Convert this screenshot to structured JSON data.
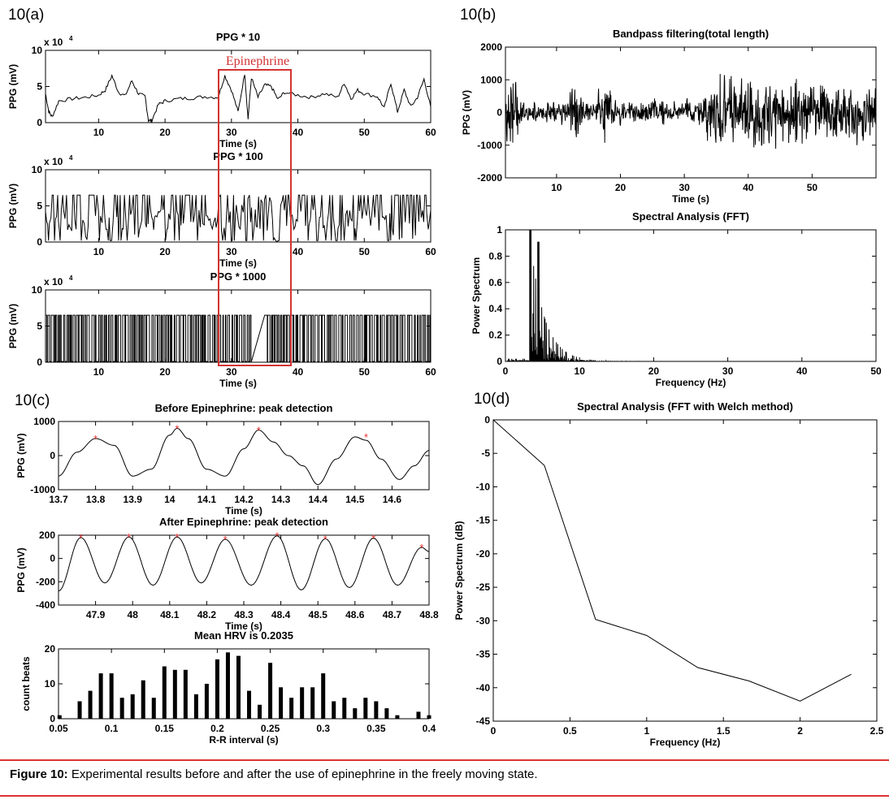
{
  "panels": {
    "a": "10(a)",
    "b": "10(b)",
    "c": "10(c)",
    "d": "10(d)"
  },
  "caption": {
    "label": "Figure 10:",
    "text": " Experimental results before and after the use of epinephrine in the freely moving state."
  },
  "annotation": {
    "text": "Epinephrine",
    "color": "#d33333"
  },
  "chart_data": [
    {
      "id": "a1",
      "type": "line",
      "title": "PPG * 10",
      "xlabel": "Time (s)",
      "ylabel": "PPG (mV)",
      "exponent": "x 10",
      "exponent_power": "4",
      "xlim": [
        2,
        60
      ],
      "ylim": [
        0,
        10
      ],
      "xticks": [
        10,
        20,
        30,
        40,
        50,
        60
      ],
      "yticks": [
        0,
        5,
        10
      ],
      "xtick_labels": [
        "10",
        "20",
        "30",
        "40",
        "50",
        "60"
      ],
      "ytick_labels": [
        "0",
        "5",
        "10"
      ],
      "series": [
        {
          "x": [
            2,
            2.5,
            3,
            4,
            6,
            8,
            10,
            11,
            12,
            13,
            14,
            15,
            16,
            17,
            17.5,
            18,
            19,
            20,
            22,
            24,
            26,
            28,
            29,
            30,
            31,
            32,
            32.5,
            33,
            34,
            35,
            36,
            37,
            38,
            40,
            42,
            44,
            46,
            47,
            48,
            49,
            50,
            52,
            53,
            54,
            55,
            56,
            57,
            58,
            59,
            60
          ],
          "y": [
            4,
            1.5,
            0.8,
            3,
            3.3,
            3.5,
            3.8,
            4.5,
            6.5,
            4.2,
            3.7,
            5.8,
            4,
            3.6,
            0.3,
            0.3,
            2.5,
            3,
            3.3,
            3.4,
            3.6,
            3.5,
            6.5,
            4.5,
            1.5,
            6.8,
            0.5,
            6.2,
            3.5,
            5.2,
            5,
            3.2,
            4.2,
            3.8,
            3.5,
            4,
            3.5,
            5.5,
            3.3,
            4.5,
            4,
            3.6,
            2,
            5.5,
            1.5,
            4.5,
            2.2,
            3.5,
            6,
            2.2
          ]
        }
      ]
    },
    {
      "id": "a2",
      "type": "line",
      "title": "PPG * 100",
      "xlabel": "Time (s)",
      "ylabel": "PPG (mV)",
      "exponent": "x 10",
      "exponent_power": "4",
      "xlim": [
        2,
        60
      ],
      "ylim": [
        0,
        10
      ],
      "xticks": [
        10,
        20,
        30,
        40,
        50,
        60
      ],
      "yticks": [
        0,
        5,
        10
      ],
      "xtick_labels": [
        "10",
        "20",
        "30",
        "40",
        "50",
        "60"
      ],
      "ytick_labels": [
        "0",
        "5",
        "10"
      ]
    },
    {
      "id": "a3",
      "type": "line",
      "title": "PPG * 1000",
      "xlabel": "Time (s)",
      "ylabel": "PPG (mV)",
      "exponent": "x 10",
      "exponent_power": "4",
      "xlim": [
        2,
        60
      ],
      "ylim": [
        0,
        10
      ],
      "xticks": [
        10,
        20,
        30,
        40,
        50,
        60
      ],
      "yticks": [
        0,
        5,
        10
      ],
      "xtick_labels": [
        "10",
        "20",
        "30",
        "40",
        "50",
        "60"
      ],
      "ytick_labels": [
        "0",
        "5",
        "10"
      ]
    },
    {
      "id": "b1",
      "type": "line",
      "title": "Bandpass filtering(total length)",
      "xlabel": "Time (s)",
      "ylabel": "PPG (mV)",
      "xlim": [
        2,
        60
      ],
      "ylim": [
        -2000,
        2000
      ],
      "xticks": [
        10,
        20,
        30,
        40,
        50
      ],
      "yticks": [
        -2000,
        -1000,
        0,
        1000,
        2000
      ],
      "xtick_labels": [
        "10",
        "20",
        "30",
        "40",
        "50"
      ],
      "ytick_labels": [
        "-2000",
        "-1000",
        "0",
        "1000",
        "2000"
      ]
    },
    {
      "id": "b2",
      "type": "line",
      "title": "Spectral Analysis (FFT)",
      "xlabel": "Frequency (Hz)",
      "ylabel": "Power Spectrum",
      "xlim": [
        0,
        50
      ],
      "ylim": [
        0,
        1
      ],
      "xticks": [
        0,
        10,
        20,
        30,
        40,
        50
      ],
      "yticks": [
        0,
        0.2,
        0.4,
        0.6,
        0.8,
        1
      ],
      "xtick_labels": [
        "0",
        "10",
        "20",
        "30",
        "40",
        "50"
      ],
      "ytick_labels": [
        "0",
        "0.2",
        "0.4",
        "0.6",
        "0.8",
        "1"
      ]
    },
    {
      "id": "c1",
      "type": "line",
      "title": "Before Epinephrine: peak detection",
      "xlabel": "Time (s)",
      "ylabel": "PPG (mV)",
      "xlim": [
        13.7,
        14.7
      ],
      "ylim": [
        -1000,
        1000
      ],
      "xticks": [
        13.7,
        13.8,
        13.9,
        14,
        14.1,
        14.2,
        14.3,
        14.4,
        14.5,
        14.6
      ],
      "yticks": [
        -1000,
        0,
        1000
      ],
      "xtick_labels": [
        "13.7",
        "13.8",
        "13.9",
        "14",
        "14.1",
        "14.2",
        "14.3",
        "14.4",
        "14.5",
        "14.6"
      ],
      "ytick_labels": [
        "-1000",
        "0",
        "1000"
      ],
      "series": [
        {
          "x": [
            13.7,
            13.75,
            13.8,
            13.85,
            13.9,
            13.95,
            14.0,
            14.02,
            14.05,
            14.1,
            14.15,
            14.2,
            14.24,
            14.28,
            14.32,
            14.36,
            14.4,
            14.45,
            14.5,
            14.53,
            14.57,
            14.62,
            14.66,
            14.7
          ],
          "y": [
            -600,
            100,
            500,
            300,
            -600,
            -400,
            600,
            800,
            500,
            -400,
            -600,
            200,
            750,
            400,
            0,
            -300,
            -850,
            -100,
            550,
            450,
            -100,
            -700,
            -300,
            150
          ]
        }
      ],
      "peaks": {
        "x": [
          13.8,
          14.02,
          14.24,
          14.53
        ],
        "y": [
          500,
          800,
          750,
          550
        ]
      }
    },
    {
      "id": "c2",
      "type": "line",
      "title": "After Epinephrine: peak detection",
      "xlabel": "Time (s)",
      "ylabel": "PPG (mV)",
      "xlim": [
        47.8,
        48.8
      ],
      "ylim": [
        -400,
        200
      ],
      "xticks": [
        47.9,
        48,
        48.1,
        48.2,
        48.3,
        48.4,
        48.5,
        48.6,
        48.7,
        48.8
      ],
      "yticks": [
        -400,
        -200,
        0,
        200
      ],
      "xtick_labels": [
        "47.9",
        "48",
        "48.1",
        "48.2",
        "48.3",
        "48.4",
        "48.5",
        "48.6",
        "48.7",
        "48.8"
      ],
      "ytick_labels": [
        "-400",
        "-200",
        "0",
        "200"
      ],
      "peaks": {
        "x": [
          47.86,
          47.99,
          48.12,
          48.25,
          48.39,
          48.52,
          48.65,
          48.78
        ],
        "y": [
          180,
          185,
          185,
          165,
          195,
          170,
          175,
          95
        ]
      }
    },
    {
      "id": "c3",
      "type": "bar",
      "title": "Mean HRV is 0.2035",
      "xlabel": "R-R interval (s)",
      "ylabel": "count beats",
      "xlim": [
        0.05,
        0.4
      ],
      "ylim": [
        0,
        20
      ],
      "xticks": [
        0.05,
        0.1,
        0.15,
        0.2,
        0.25,
        0.3,
        0.35,
        0.4
      ],
      "yticks": [
        0,
        10,
        20
      ],
      "xtick_labels": [
        "0.05",
        "0.1",
        "0.15",
        "0.2",
        "0.25",
        "0.3",
        "0.35",
        "0.4"
      ],
      "ytick_labels": [
        "0",
        "10",
        "20"
      ],
      "x": [
        0.051,
        0.07,
        0.08,
        0.09,
        0.1,
        0.11,
        0.12,
        0.13,
        0.14,
        0.15,
        0.16,
        0.17,
        0.18,
        0.19,
        0.2,
        0.21,
        0.22,
        0.23,
        0.24,
        0.25,
        0.26,
        0.27,
        0.28,
        0.29,
        0.3,
        0.31,
        0.32,
        0.33,
        0.34,
        0.35,
        0.36,
        0.37,
        0.39,
        0.4
      ],
      "values": [
        1,
        5,
        8,
        13,
        13,
        6,
        7,
        11,
        6,
        15,
        14,
        14,
        7,
        10,
        17,
        19,
        18,
        8,
        4,
        16,
        9,
        6,
        9,
        9,
        13,
        5,
        6,
        3,
        6,
        5,
        3,
        1,
        2,
        1
      ]
    },
    {
      "id": "d1",
      "type": "line",
      "title": "Spectral Analysis (FFT with Welch method)",
      "xlabel": "Frequency (Hz)",
      "ylabel": "Power Spectrum (dB)",
      "xlim": [
        0,
        2.5
      ],
      "ylim": [
        -45,
        0
      ],
      "xticks": [
        0,
        0.5,
        1,
        1.5,
        2,
        2.5
      ],
      "yticks": [
        -45,
        -40,
        -35,
        -30,
        -25,
        -20,
        -15,
        -10,
        -5,
        0
      ],
      "xtick_labels": [
        "0",
        "0.5",
        "1",
        "1.5",
        "2",
        "2.5"
      ],
      "ytick_labels": [
        "-45",
        "-40",
        "-35",
        "-30",
        "-25",
        "-20",
        "-15",
        "-10",
        "-5",
        "0"
      ],
      "series": [
        {
          "x": [
            0,
            0.333,
            0.667,
            1.0,
            1.333,
            1.667,
            2.0,
            2.333
          ],
          "y": [
            0,
            -6.8,
            -29.8,
            -32.2,
            -37,
            -39,
            -42,
            -38
          ]
        }
      ]
    }
  ]
}
